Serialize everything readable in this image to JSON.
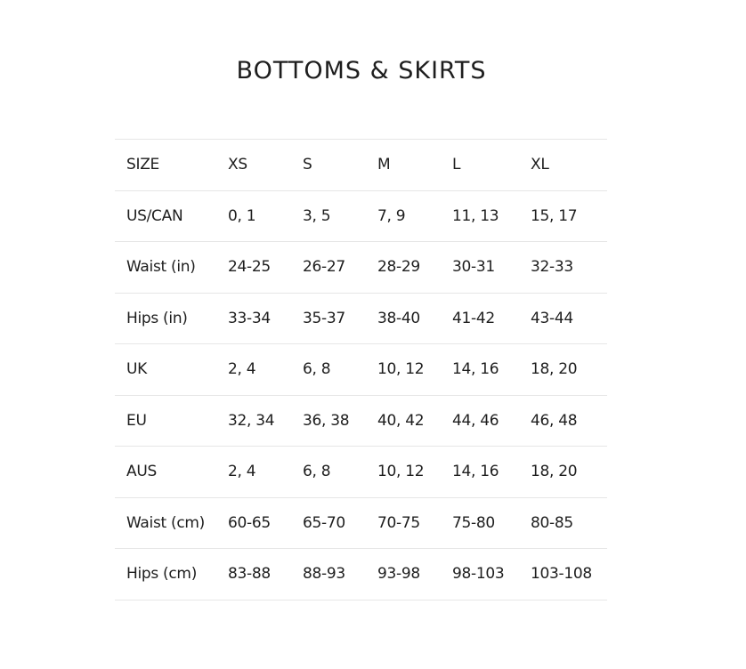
{
  "title": "BOTTOMS & SKIRTS",
  "table": {
    "rows": [
      [
        "SIZE",
        "XS",
        "S",
        "M",
        "L",
        "XL"
      ],
      [
        "US/CAN",
        "0, 1",
        "3, 5",
        "7, 9",
        "11, 13",
        "15, 17"
      ],
      [
        "Waist (in)",
        "24-25",
        "26-27",
        "28-29",
        "30-31",
        "32-33"
      ],
      [
        "Hips (in)",
        "33-34",
        "35-37",
        "38-40",
        "41-42",
        "43-44"
      ],
      [
        "UK",
        "2, 4",
        "6, 8",
        "10, 12",
        "14, 16",
        "18, 20"
      ],
      [
        "EU",
        "32, 34",
        "36, 38",
        "40, 42",
        "44, 46",
        "46, 48"
      ],
      [
        "AUS",
        "2, 4",
        "6, 8",
        "10, 12",
        "14, 16",
        "18, 20"
      ],
      [
        "Waist (cm)",
        "60-65",
        "65-70",
        "70-75",
        "75-80",
        "80-85"
      ],
      [
        "Hips (cm)",
        "83-88",
        "88-93",
        "93-98",
        "98-103",
        "103-108"
      ]
    ]
  }
}
